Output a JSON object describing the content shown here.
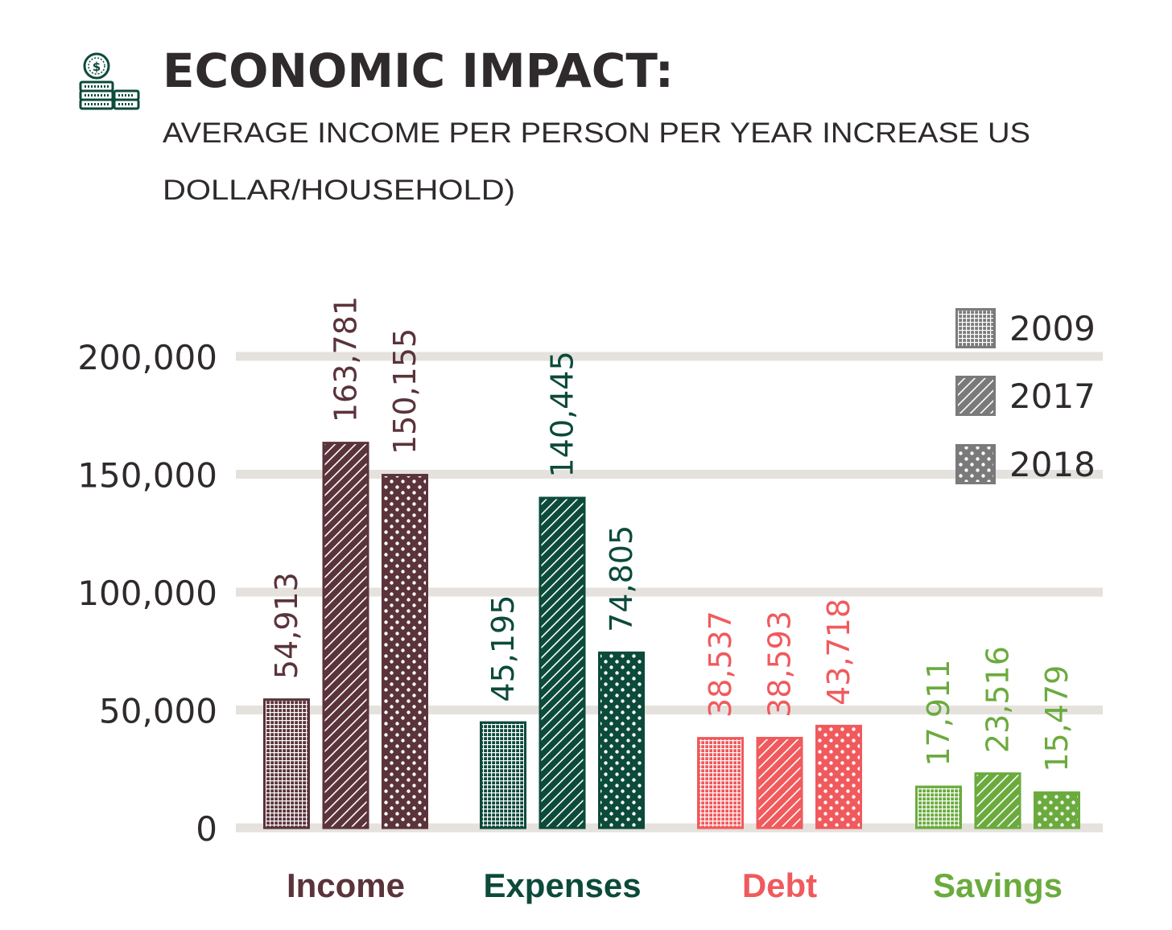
{
  "header": {
    "title": "ECONOMIC IMPACT:",
    "subtitle_line1": "AVERAGE INCOME PER PERSON PER YEAR INCREASE US",
    "subtitle_line2": "DOLLAR/HOUSEHOLD)",
    "icon": "money-coins-icon"
  },
  "colors": {
    "Income": "#5a333b",
    "Expenses": "#0c4a3a",
    "Debt": "#f05a5d",
    "Savings": "#6bab3e",
    "legend": "#7a7a7a",
    "grid": "#e5e2de",
    "text": "#2f2a2c",
    "icon": "#0c4a3a"
  },
  "chart_data": {
    "type": "bar",
    "title": "ECONOMIC IMPACT:",
    "subtitle": "AVERAGE INCOME PER PERSON PER YEAR INCREASE US DOLLAR/HOUSEHOLD)",
    "categories": [
      "Income",
      "Expenses",
      "Debt",
      "Savings"
    ],
    "series": [
      {
        "name": "2009",
        "pattern": "grid",
        "values": [
          54913,
          45195,
          38537,
          17911
        ],
        "labels": [
          "54,913",
          "45,195",
          "38,537",
          "17,911"
        ]
      },
      {
        "name": "2017",
        "pattern": "diagonal",
        "values": [
          163781,
          140445,
          38593,
          23516
        ],
        "labels": [
          "163,781",
          "140,445",
          "38,593",
          "23,516"
        ]
      },
      {
        "name": "2018",
        "pattern": "dots",
        "values": [
          150155,
          74805,
          43718,
          15479
        ],
        "labels": [
          "150,155",
          "74,805",
          "43,718",
          "15,479"
        ]
      }
    ],
    "yticks": [
      0,
      50000,
      100000,
      150000,
      200000
    ],
    "ytick_labels": [
      "0",
      "50,000",
      "100,000",
      "150,000",
      "200,000"
    ],
    "ylim": [
      0,
      200000
    ],
    "grid": true,
    "legend_position": "top-right",
    "xlabel": "",
    "ylabel": ""
  }
}
